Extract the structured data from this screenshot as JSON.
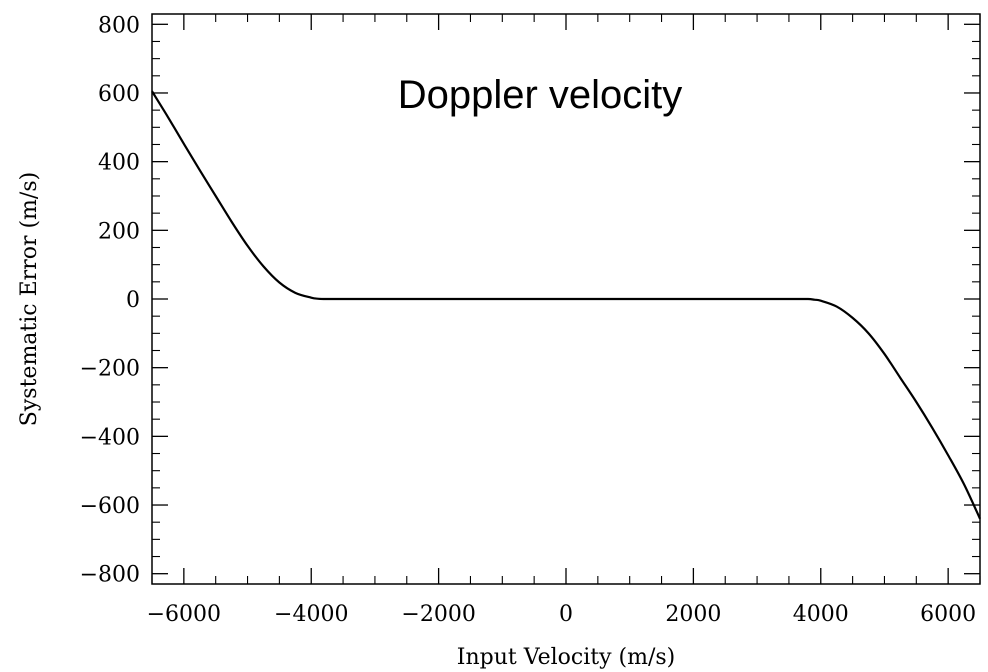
{
  "chart_data": {
    "type": "line",
    "title": "",
    "annotation": "Doppler velocity",
    "xlabel": "Input Velocity (m/s)",
    "ylabel": "Systematic Error (m/s)",
    "xlim": [
      -6500,
      6500
    ],
    "ylim": [
      -830,
      830
    ],
    "x_ticks": [
      -6000,
      -4000,
      -2000,
      0,
      2000,
      4000,
      6000
    ],
    "x_tick_labels": [
      "−6000",
      "−4000",
      "−2000",
      "0",
      "2000",
      "4000",
      "6000"
    ],
    "y_ticks": [
      -800,
      -600,
      -400,
      -200,
      0,
      200,
      400,
      600,
      800
    ],
    "y_tick_labels": [
      "−800",
      "−600",
      "−400",
      "−200",
      "0",
      "200",
      "400",
      "600",
      "800"
    ],
    "grid": false,
    "series": [
      {
        "name": "",
        "x": [
          -6500,
          -6250,
          -6000,
          -5750,
          -5500,
          -5250,
          -5000,
          -4750,
          -4500,
          -4250,
          -4000,
          -3900,
          -3800,
          -3700,
          -2000,
          0,
          2000,
          3600,
          3800,
          3900,
          4000,
          4250,
          4500,
          4750,
          5000,
          5250,
          5500,
          5750,
          6000,
          6250,
          6500
        ],
        "y": [
          605,
          530,
          452,
          375,
          300,
          225,
          155,
          95,
          48,
          18,
          4,
          1,
          0,
          0,
          0,
          0,
          0,
          0,
          0,
          -2,
          -5,
          -22,
          -55,
          -100,
          -160,
          -230,
          -300,
          -375,
          -455,
          -540,
          -640
        ]
      }
    ]
  }
}
